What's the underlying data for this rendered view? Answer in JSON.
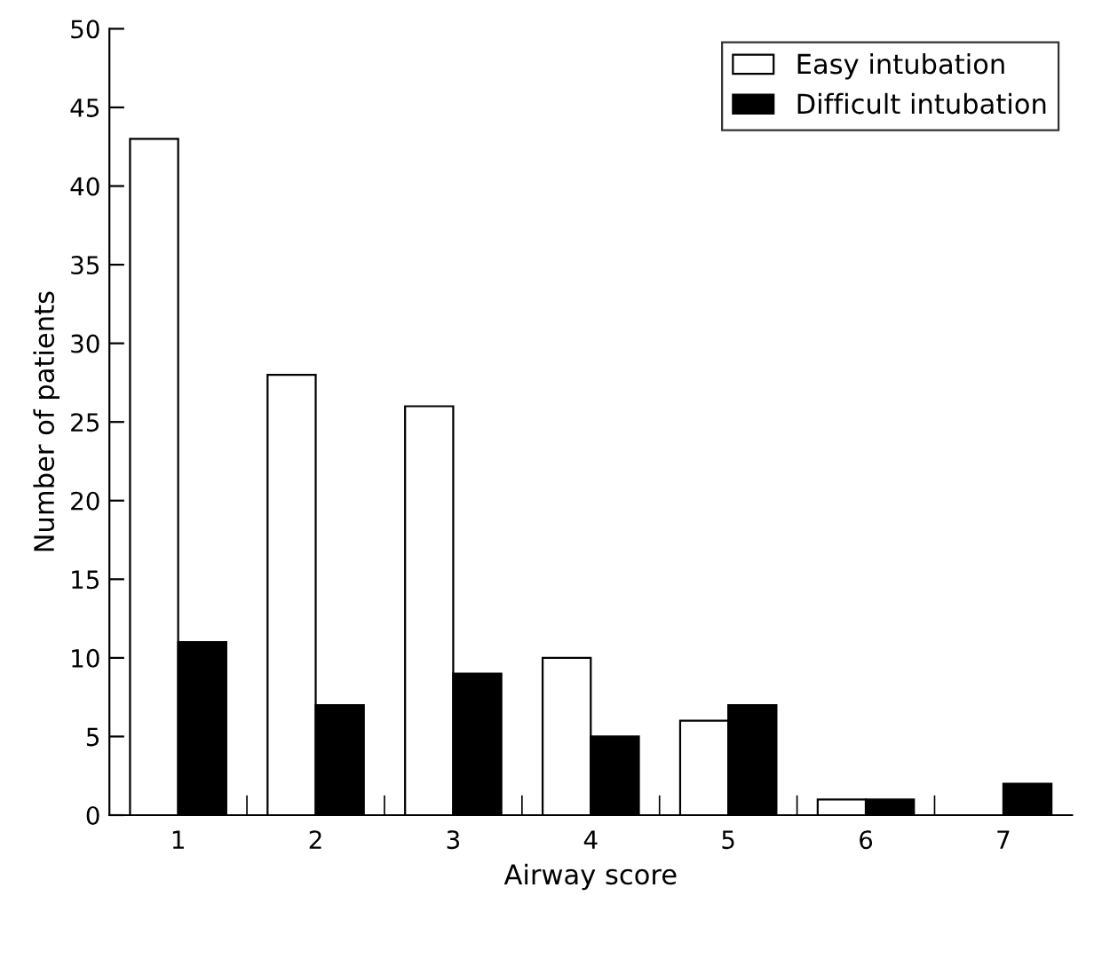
{
  "chart_data": {
    "type": "bar",
    "xlabel": "Airway score",
    "ylabel": "Number of patients",
    "categories": [
      "1",
      "2",
      "3",
      "4",
      "5",
      "6",
      "7"
    ],
    "series": [
      {
        "name": "Easy intubation",
        "color": "#ffffff",
        "values": [
          43,
          28,
          26,
          10,
          6,
          1,
          null
        ]
      },
      {
        "name": "Difficult intubation",
        "color": "#000000",
        "values": [
          11,
          7,
          9,
          5,
          7,
          1,
          2
        ]
      }
    ],
    "ylim": [
      0,
      50
    ],
    "yticks": [
      0,
      5,
      10,
      15,
      20,
      25,
      30,
      35,
      40,
      45,
      50
    ],
    "grid": false,
    "legend": "top right"
  }
}
